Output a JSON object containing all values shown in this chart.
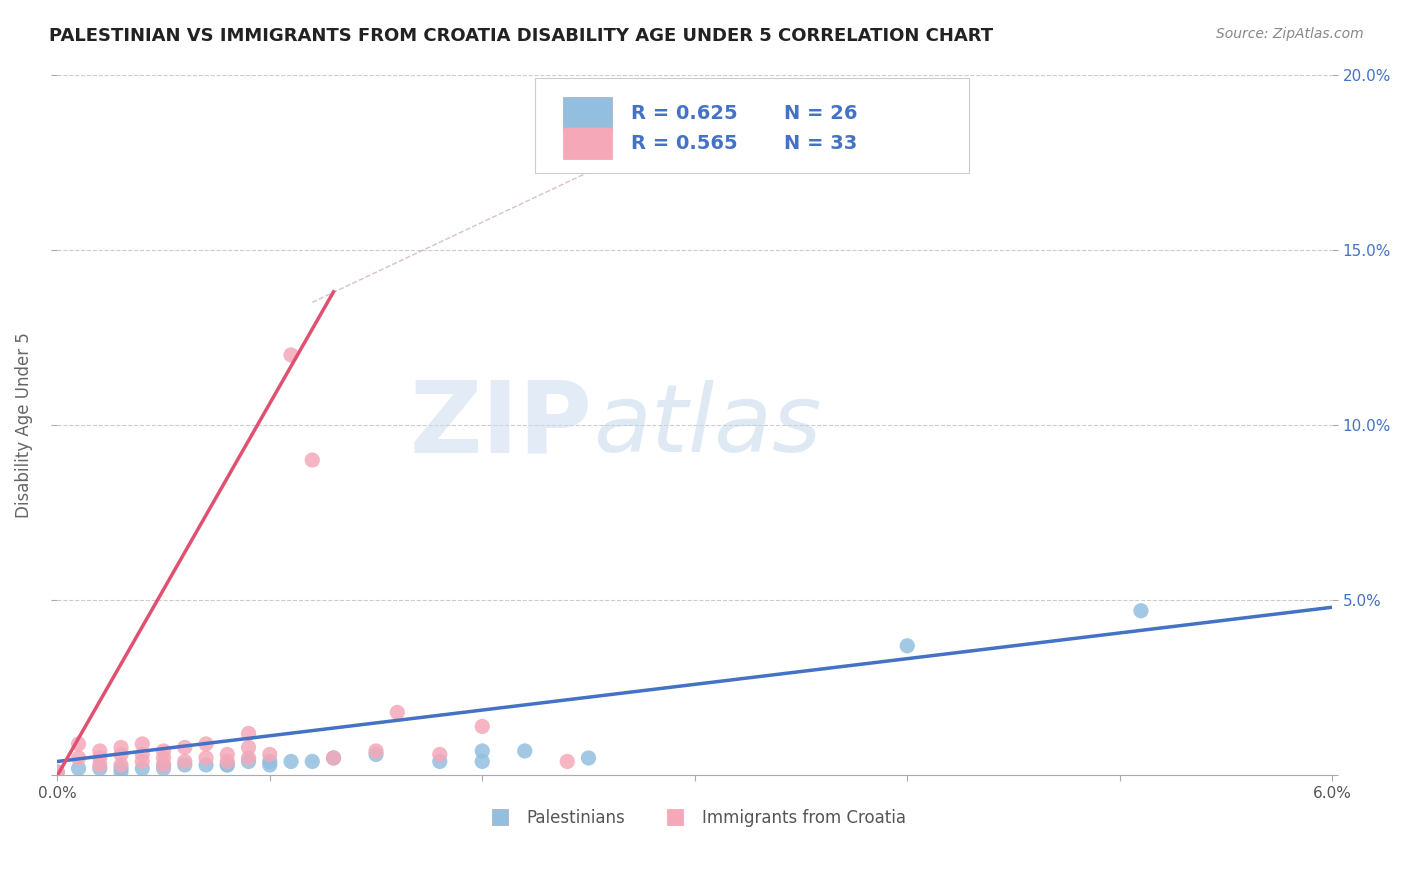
{
  "title": "PALESTINIAN VS IMMIGRANTS FROM CROATIA DISABILITY AGE UNDER 5 CORRELATION CHART",
  "source": "Source: ZipAtlas.com",
  "ylabel": "Disability Age Under 5",
  "xlim": [
    0.0,
    0.06
  ],
  "ylim": [
    0.0,
    0.2
  ],
  "xtick_vals": [
    0.0,
    0.01,
    0.02,
    0.03,
    0.04,
    0.05,
    0.06
  ],
  "xtick_labels_show": {
    "0.0": "0.0%",
    "0.06": "6.0%"
  },
  "ytick_vals": [
    0.0,
    0.05,
    0.1,
    0.15,
    0.2
  ],
  "ytick_right_labels": [
    "",
    "5.0%",
    "10.0%",
    "15.0%",
    "20.0%"
  ],
  "legend_entries": [
    {
      "label_r": "R = 0.625",
      "label_n": "N = 26",
      "color": "#aec6e8"
    },
    {
      "label_r": "R = 0.565",
      "label_n": "N = 33",
      "color": "#f4b8c1"
    }
  ],
  "legend_bottom": [
    "Palestinians",
    "Immigrants from Croatia"
  ],
  "blue_scatter_x": [
    0.0,
    0.001,
    0.002,
    0.003,
    0.003,
    0.004,
    0.005,
    0.005,
    0.006,
    0.007,
    0.008,
    0.008,
    0.009,
    0.01,
    0.01,
    0.011,
    0.012,
    0.013,
    0.015,
    0.018,
    0.02,
    0.02,
    0.022,
    0.025,
    0.04,
    0.051
  ],
  "blue_scatter_y": [
    0.001,
    0.002,
    0.002,
    0.001,
    0.002,
    0.002,
    0.003,
    0.002,
    0.003,
    0.003,
    0.003,
    0.003,
    0.004,
    0.003,
    0.004,
    0.004,
    0.004,
    0.005,
    0.006,
    0.004,
    0.007,
    0.004,
    0.007,
    0.005,
    0.037,
    0.047
  ],
  "pink_scatter_x": [
    0.0,
    0.001,
    0.001,
    0.002,
    0.002,
    0.002,
    0.003,
    0.003,
    0.003,
    0.004,
    0.004,
    0.004,
    0.005,
    0.005,
    0.005,
    0.006,
    0.006,
    0.007,
    0.007,
    0.008,
    0.008,
    0.009,
    0.009,
    0.009,
    0.01,
    0.011,
    0.012,
    0.013,
    0.015,
    0.016,
    0.018,
    0.02,
    0.024
  ],
  "pink_scatter_y": [
    0.001,
    0.005,
    0.009,
    0.003,
    0.005,
    0.007,
    0.003,
    0.006,
    0.008,
    0.004,
    0.006,
    0.009,
    0.003,
    0.005,
    0.007,
    0.004,
    0.008,
    0.005,
    0.009,
    0.004,
    0.006,
    0.005,
    0.008,
    0.012,
    0.006,
    0.12,
    0.09,
    0.005,
    0.007,
    0.018,
    0.006,
    0.014,
    0.004
  ],
  "blue_line_x": [
    0.0,
    0.06
  ],
  "blue_line_y": [
    0.004,
    0.048
  ],
  "pink_line_x": [
    0.0,
    0.013
  ],
  "pink_line_y": [
    0.0,
    0.138
  ],
  "diag_line_x": [
    0.012,
    0.033
  ],
  "diag_line_y": [
    0.135,
    0.195
  ],
  "title_color": "#222222",
  "source_color": "#888888",
  "blue_color": "#92bfdf",
  "pink_color": "#f4a8b8",
  "blue_line_color": "#4472c4",
  "pink_line_color": "#e05070",
  "diag_line_color": "#c8a8a8",
  "legend_text_color": "#4472c4",
  "background_color": "#ffffff",
  "grid_color": "#cccccc"
}
